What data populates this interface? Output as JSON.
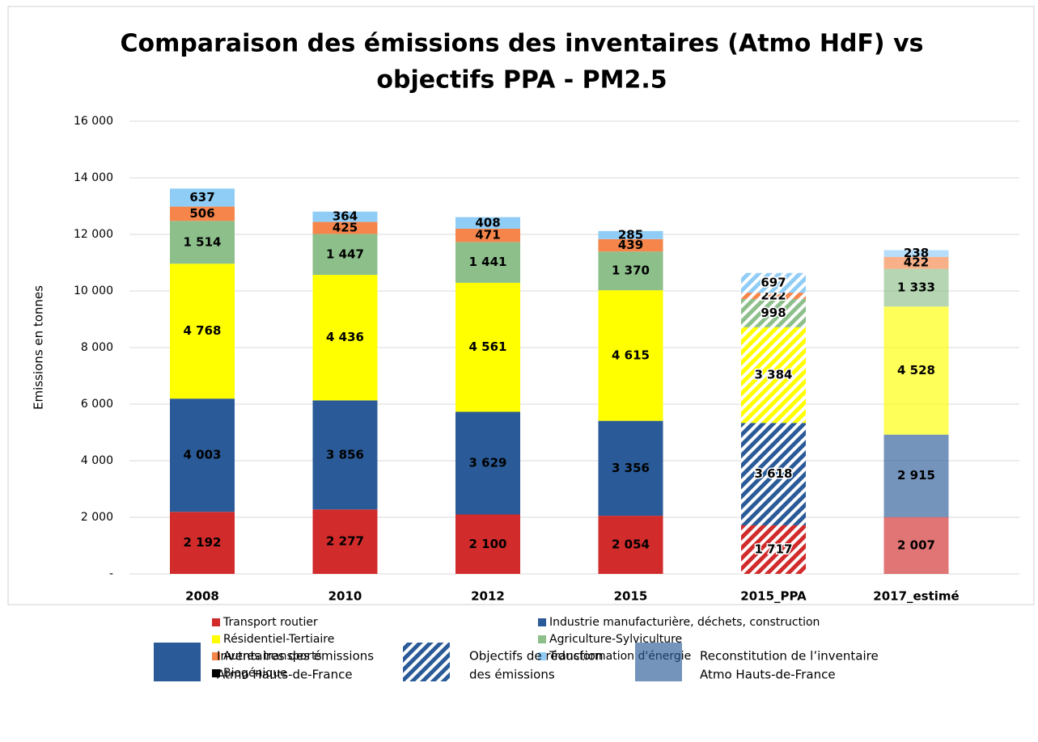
{
  "chart_data": {
    "type": "stacked_bar",
    "title": [
      "Comparaison des émissions des inventaires (Atmo HdF) vs",
      "objectifs PPA - PM2.5"
    ],
    "y_label": "Emissions en tonnes",
    "categories": [
      "2008",
      "2010",
      "2012",
      "2015",
      "2015_PPA",
      "2017_estimé"
    ],
    "bar_styles": [
      "solid",
      "solid",
      "solid",
      "solid",
      "hatched",
      "light"
    ],
    "series": [
      {
        "name": "Transport routier",
        "color": "#d12b2b",
        "values": [
          2192,
          2277,
          2100,
          2054,
          1717,
          2007
        ],
        "value_labels": [
          "2 192",
          "2 277",
          "2 100",
          "2 054",
          "1 717",
          "2 007"
        ]
      },
      {
        "name": "Industrie manufacturière, déchets, construction",
        "color": "#2a5b98",
        "values": [
          4003,
          3856,
          3629,
          3356,
          3618,
          2915
        ],
        "value_labels": [
          "4 003",
          "3 856",
          "3 629",
          "3 356",
          "3 618",
          "2 915"
        ]
      },
      {
        "name": "Résidentiel-Tertiaire",
        "color": "#ffff00",
        "values": [
          4768,
          4436,
          4561,
          4615,
          3384,
          4528
        ],
        "value_labels": [
          "4 768",
          "4 436",
          "4 561",
          "4 615",
          "3 384",
          "4 528"
        ]
      },
      {
        "name": "Agriculture-Sylviculture",
        "color": "#8dbf8b",
        "values": [
          1514,
          1447,
          1441,
          1370,
          998,
          1333
        ],
        "value_labels": [
          "1 514",
          "1 447",
          "1 441",
          "1 370",
          "998",
          "1 333"
        ]
      },
      {
        "name": "Autres transports",
        "color": "#f5854a",
        "values": [
          506,
          425,
          471,
          439,
          222,
          422
        ]
      },
      {
        "name": "Transformation d'énergie",
        "color": "#8fcdf7",
        "values": [
          637,
          364,
          408,
          285,
          697,
          238
        ]
      },
      {
        "name": "Biogénique",
        "color": "#000000",
        "values": [
          null,
          null,
          null,
          null,
          null,
          null
        ]
      }
    ],
    "ylim": [
      0,
      16000
    ],
    "yticks": [
      {
        "value": 0,
        "label": "-"
      },
      {
        "value": 2000,
        "label": "2 000"
      },
      {
        "value": 4000,
        "label": "4 000"
      },
      {
        "value": 6000,
        "label": "6 000"
      },
      {
        "value": 8000,
        "label": "8 000"
      },
      {
        "value": 10000,
        "label": "10 000"
      },
      {
        "value": 12000,
        "label": "12 000"
      },
      {
        "value": 14000,
        "label": "14 000"
      },
      {
        "value": 16000,
        "label": "16 000"
      }
    ],
    "grid": true,
    "style_legend": [
      {
        "style": "solid",
        "lines": [
          "Inventaires des émissions",
          "Atmo Hauts-de-France"
        ]
      },
      {
        "style": "hatched",
        "lines": [
          "Objectifs de réduction",
          "des émissions"
        ]
      },
      {
        "style": "light",
        "lines": [
          "Reconstitution de l’inventaire",
          "Atmo Hauts-de-France"
        ]
      }
    ]
  }
}
